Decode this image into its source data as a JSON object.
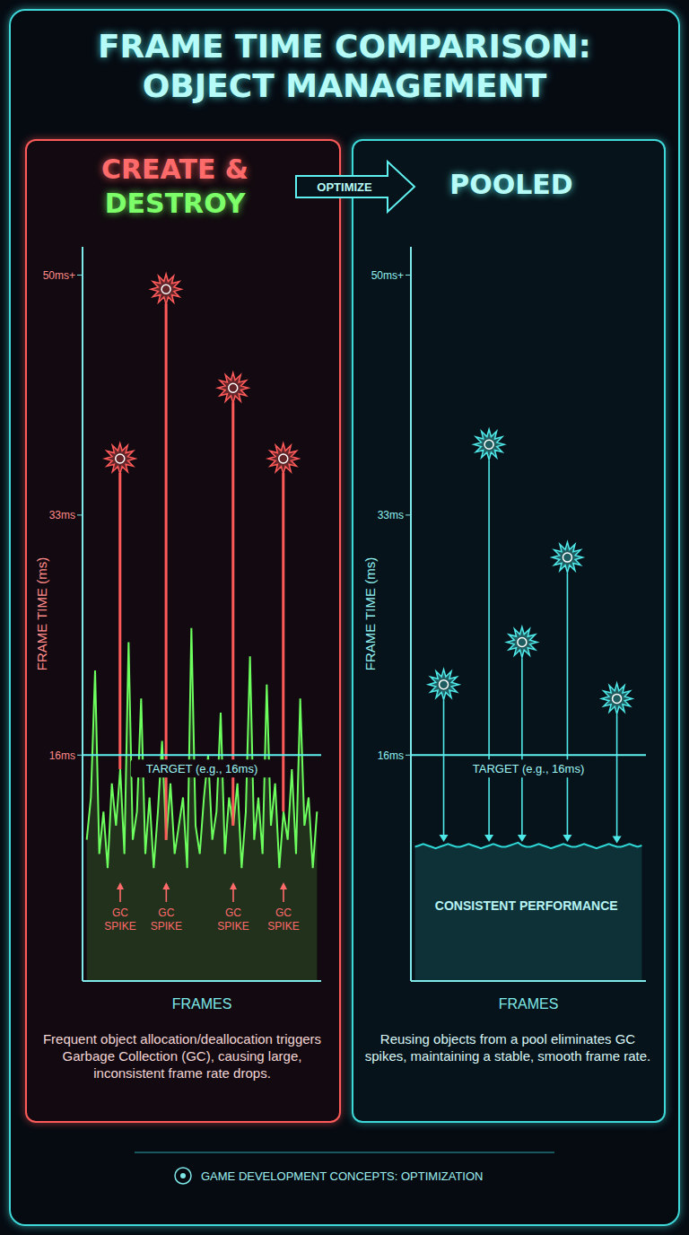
{
  "title": "FRAME TIME COMPARISON: OBJECT MANAGEMENT",
  "arrow_label": "OPTIMIZE",
  "footer": "GAME DEVELOPMENT CONCEPTS: OPTIMIZATION",
  "chart_data": [
    {
      "type": "line",
      "title": "CREATE & DESTROY",
      "caption": "Frequent object allocation/deallocation triggers Garbage Collection (GC), causing large, inconsistent frame rate drops.",
      "x_label": "FRAMES",
      "y_label": "FRAME TIME (ms)",
      "x": [
        1,
        2,
        3,
        4,
        5,
        6,
        7,
        8,
        9,
        10,
        11,
        12,
        13,
        14,
        15,
        16,
        17,
        18,
        19,
        20,
        21,
        22,
        23,
        24,
        25,
        26,
        27,
        28,
        29,
        30,
        31,
        32,
        33,
        34,
        35,
        36,
        37,
        38,
        39,
        40,
        41,
        42,
        43,
        44,
        45,
        46,
        47,
        48,
        49,
        50,
        51,
        52,
        53,
        54,
        55,
        56
      ],
      "xlim": [
        0,
        57
      ],
      "ylim": [
        0,
        52
      ],
      "yticks": [
        {
          "value": 16,
          "label": "16ms"
        },
        {
          "value": 33,
          "label": "33ms"
        },
        {
          "value": 50,
          "label": "50ms+"
        }
      ],
      "tick_labels": "y",
      "grid": false,
      "target": {
        "value": 16,
        "label": "TARGET (e.g., 16ms)"
      },
      "series": [
        {
          "type": "area",
          "color": "#6dff5e",
          "values": [
            10,
            13,
            22,
            9,
            12,
            8,
            14,
            11,
            15,
            9,
            24,
            10,
            12,
            20,
            9,
            13,
            8,
            12,
            17,
            10,
            14,
            9,
            11,
            13,
            8,
            25,
            11,
            9,
            13,
            16,
            10,
            12,
            19,
            9,
            13,
            11,
            14,
            8,
            12,
            23,
            10,
            13,
            9,
            21,
            11,
            14,
            8,
            12,
            10,
            15,
            9,
            20,
            11,
            13,
            8,
            12
          ]
        },
        {
          "type": "bar",
          "color": "#ff5a5a",
          "marker": "starburst",
          "line_style": "solid",
          "values": [
            null,
            null,
            null,
            null,
            null,
            null,
            null,
            null,
            37,
            null,
            null,
            null,
            null,
            null,
            null,
            null,
            null,
            null,
            null,
            49,
            null,
            null,
            null,
            null,
            null,
            null,
            null,
            null,
            null,
            null,
            null,
            null,
            null,
            null,
            null,
            42,
            null,
            null,
            null,
            null,
            null,
            null,
            null,
            null,
            null,
            null,
            null,
            37,
            null,
            null,
            null,
            null,
            null,
            null,
            null,
            null
          ]
        }
      ],
      "annotations": [
        {
          "x": 9,
          "y": 7,
          "text": "GC SPIKE"
        },
        {
          "x": 20,
          "y": 7,
          "text": "GC SPIKE"
        },
        {
          "x": 36,
          "y": 7,
          "text": "GC SPIKE"
        },
        {
          "x": 48,
          "y": 7,
          "text": "GC SPIKE"
        }
      ]
    },
    {
      "type": "line",
      "title": "POOLED",
      "caption": "Reusing objects from a pool eliminates GC spikes, maintaining a stable, smooth frame rate.",
      "x_label": "FRAMES",
      "y_label": "FRAME TIME (ms)",
      "x": [
        1,
        2,
        3,
        4,
        5,
        6,
        7,
        8,
        9,
        10,
        11,
        12,
        13,
        14,
        15,
        16,
        17,
        18,
        19,
        20,
        21,
        22,
        23,
        24,
        25,
        26,
        27,
        28,
        29,
        30,
        31,
        32,
        33,
        34,
        35,
        36,
        37,
        38,
        39,
        40,
        41,
        42,
        43,
        44,
        45,
        46,
        47,
        48,
        49,
        50,
        51,
        52,
        53,
        54,
        55,
        56
      ],
      "xlim": [
        0,
        57
      ],
      "ylim": [
        0,
        52
      ],
      "yticks": [
        {
          "value": 16,
          "label": "16ms"
        },
        {
          "value": 33,
          "label": "33ms"
        },
        {
          "value": 50,
          "label": "50ms+"
        }
      ],
      "tick_labels": "y",
      "grid": false,
      "target": {
        "value": 16,
        "label": "TARGET (e.g., 16ms)"
      },
      "series": [
        {
          "type": "area",
          "color": "#2fd6d6",
          "values": [
            9.5,
            9.6,
            9.7,
            9.6,
            9.5,
            9.4,
            9.5,
            9.6,
            9.7,
            9.6,
            9.5,
            9.5,
            9.6,
            9.7,
            9.6,
            9.5,
            9.4,
            9.5,
            9.6,
            9.7,
            9.6,
            9.5,
            9.5,
            9.6,
            9.7,
            9.8,
            9.6,
            9.5,
            9.5,
            9.6,
            9.7,
            9.6,
            9.5,
            9.4,
            9.5,
            9.6,
            9.7,
            9.6,
            9.5,
            9.5,
            9.6,
            9.7,
            9.6,
            9.5,
            9.4,
            9.5,
            9.6,
            9.7,
            9.6,
            9.5,
            9.5,
            9.6,
            9.7,
            9.6,
            9.5,
            9.6
          ]
        },
        {
          "type": "bar",
          "color": "#4fe8e8",
          "marker": "starburst",
          "line_style": "arrow",
          "values": [
            null,
            null,
            null,
            null,
            null,
            null,
            null,
            21,
            null,
            null,
            null,
            null,
            null,
            null,
            null,
            null,
            null,
            null,
            38,
            null,
            null,
            null,
            null,
            null,
            null,
            null,
            24,
            null,
            null,
            null,
            null,
            null,
            null,
            null,
            null,
            null,
            null,
            30,
            null,
            null,
            null,
            null,
            null,
            null,
            null,
            null,
            null,
            null,
            null,
            20,
            null,
            null,
            null,
            null,
            null,
            null
          ]
        }
      ],
      "annotations": [
        {
          "x": 28,
          "y": 5,
          "text": "CONSISTENT PERFORMANCE"
        }
      ]
    }
  ]
}
